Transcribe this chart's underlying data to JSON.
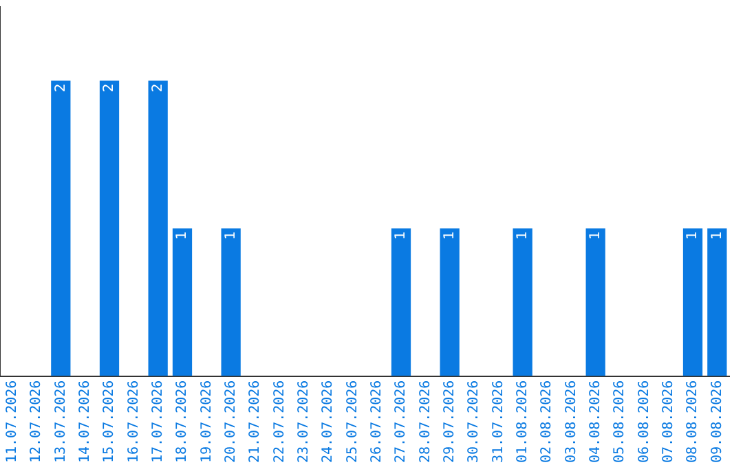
{
  "chart_data": {
    "type": "bar",
    "categories": [
      "11.07.2026",
      "12.07.2026",
      "13.07.2026",
      "14.07.2026",
      "15.07.2026",
      "16.07.2026",
      "17.07.2026",
      "18.07.2026",
      "19.07.2026",
      "20.07.2026",
      "21.07.2026",
      "22.07.2026",
      "23.07.2026",
      "24.07.2026",
      "25.07.2026",
      "26.07.2026",
      "27.07.2026",
      "28.07.2026",
      "29.07.2026",
      "30.07.2026",
      "31.07.2026",
      "01.08.2026",
      "02.08.2026",
      "03.08.2026",
      "04.08.2026",
      "05.08.2026",
      "06.08.2026",
      "07.08.2026",
      "08.08.2026",
      "09.08.2026"
    ],
    "values": [
      0,
      0,
      2,
      0,
      2,
      0,
      2,
      1,
      0,
      1,
      0,
      0,
      0,
      0,
      0,
      0,
      1,
      0,
      1,
      0,
      0,
      1,
      0,
      0,
      1,
      0,
      0,
      0,
      1,
      1
    ],
    "value_labels": [
      null,
      null,
      "2",
      null,
      "2",
      null,
      "2",
      "1",
      null,
      "1",
      null,
      null,
      null,
      null,
      null,
      null,
      "1",
      null,
      "1",
      null,
      null,
      "1",
      null,
      null,
      "1",
      null,
      null,
      null,
      "1",
      "1"
    ],
    "color": "#0a7ae2",
    "tick_labels": "x",
    "grid": false,
    "legend": false
  }
}
